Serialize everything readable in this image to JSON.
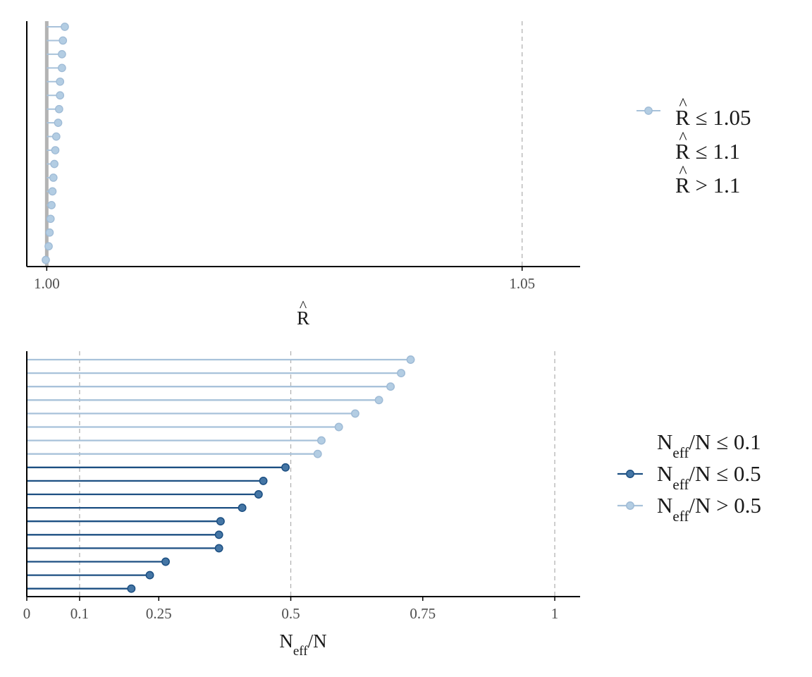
{
  "colors": {
    "light": "#b3cde3",
    "light_stroke": "#9fbbd6",
    "light_line": "#a8c2da",
    "dark": "#1c4f82",
    "dark_fill": "#4576a5",
    "ref_line": "#b3b3b3",
    "axis": "#000000"
  },
  "chart_data": [
    {
      "type": "lollipop",
      "panel": "rhat",
      "xlabel": {
        "symbol": "R",
        "hat": "^"
      },
      "xlim": [
        0.9979,
        1.0561
      ],
      "baseline": 1.0,
      "grid": false,
      "reference_lines": [
        1.05
      ],
      "ticks": [
        {
          "value": 1.0,
          "label": "1.00"
        },
        {
          "value": 1.05,
          "label": "1.05"
        }
      ],
      "values": [
        1.0019,
        1.0017,
        1.0016,
        1.0016,
        1.0014,
        1.0014,
        1.0013,
        1.0012,
        1.001,
        1.0009,
        1.0008,
        1.0007,
        1.0006,
        1.0005,
        1.0004,
        1.0003,
        1.0002,
        0.9999
      ],
      "legend": {
        "position": "right",
        "entries": [
          {
            "prefix": "R",
            "text": " ≤ 1.05",
            "show_marker": true
          },
          {
            "prefix": "R",
            "text": " ≤ 1.1",
            "show_marker": false
          },
          {
            "prefix": "R",
            "text": " > 1.1",
            "show_marker": false
          }
        ]
      }
    },
    {
      "type": "lollipop",
      "panel": "neff",
      "xlabel": {
        "main": "N",
        "sub": "eff",
        "suffix": "/N"
      },
      "xlim": [
        0,
        1.048
      ],
      "baseline": 0,
      "grid": false,
      "reference_lines": [
        0.1,
        0.5,
        1
      ],
      "ticks": [
        {
          "value": 0,
          "label": "0"
        },
        {
          "value": 0.1,
          "label": "0.1"
        },
        {
          "value": 0.25,
          "label": "0.25"
        },
        {
          "value": 0.5,
          "label": "0.5"
        },
        {
          "value": 0.75,
          "label": "0.75"
        },
        {
          "value": 1,
          "label": "1"
        }
      ],
      "values": [
        0.727,
        0.709,
        0.689,
        0.667,
        0.622,
        0.591,
        0.558,
        0.551,
        0.49,
        0.448,
        0.439,
        0.408,
        0.367,
        0.364,
        0.364,
        0.263,
        0.233,
        0.198
      ],
      "legend": {
        "position": "right",
        "entries": [
          {
            "main": "N",
            "sub": "eff",
            "text": "/N ≤ 0.1",
            "show_marker": false
          },
          {
            "main": "N",
            "sub": "eff",
            "text": "/N ≤ 0.5",
            "show_marker": true,
            "style": "dark"
          },
          {
            "main": "N",
            "sub": "eff",
            "text": "/N > 0.5",
            "show_marker": true,
            "style": "light"
          }
        ]
      }
    }
  ]
}
